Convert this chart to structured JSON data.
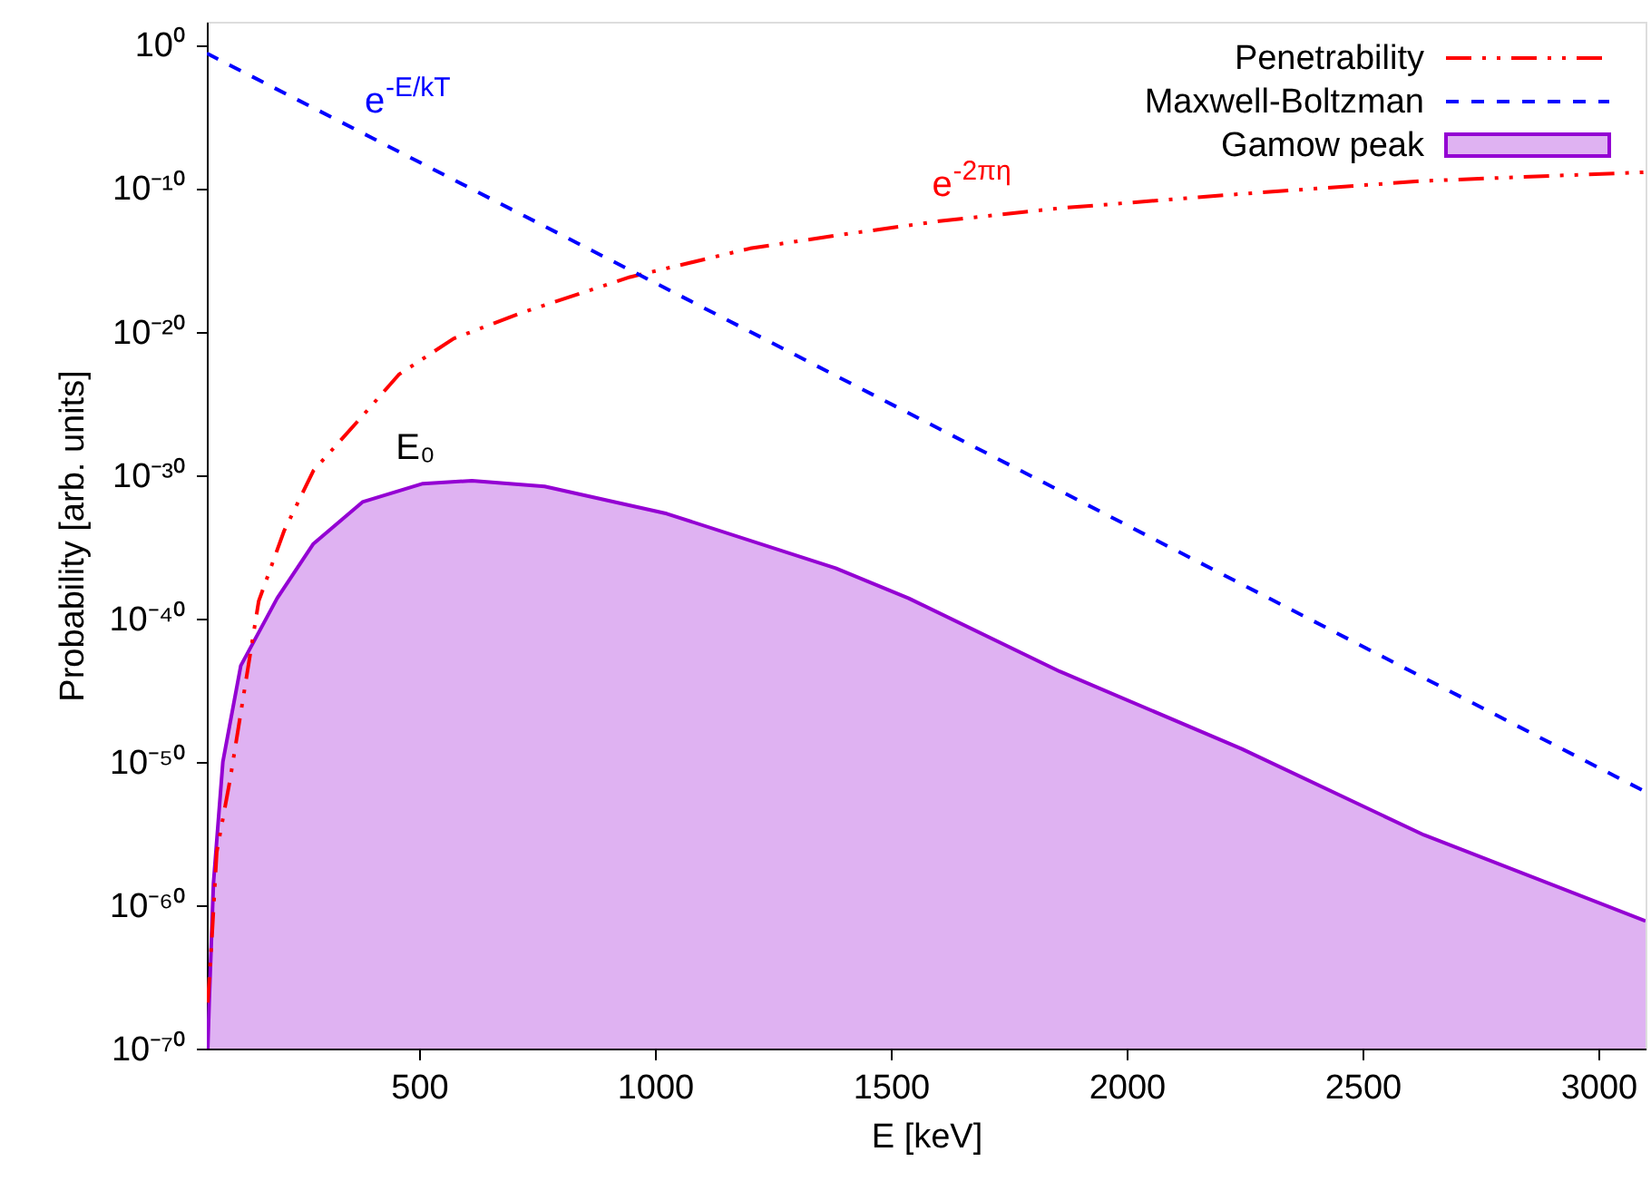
{
  "chart_data": {
    "type": "line",
    "xlabel": "E [keV]",
    "ylabel": "Probability [arb. units]",
    "xlim": [
      50,
      3100
    ],
    "xticks": [
      500,
      1000,
      1500,
      2000,
      2500,
      3000
    ],
    "ylim": [
      1e-70,
      40
    ],
    "log": "y",
    "yticks": [
      {
        "value": 1e-70,
        "label": "10⁻⁷⁰"
      },
      {
        "value": 1e-60,
        "label": "10⁻⁶⁰"
      },
      {
        "value": 1e-50,
        "label": "10⁻⁵⁰"
      },
      {
        "value": 1e-40,
        "label": "10⁻⁴⁰"
      },
      {
        "value": 1e-30,
        "label": "10⁻³⁰"
      },
      {
        "value": 1e-20,
        "label": "10⁻²⁰"
      },
      {
        "value": 1e-10,
        "label": "10⁻¹⁰"
      },
      {
        "value": 1,
        "label": "10⁰"
      }
    ],
    "grid": false,
    "legend": "top right",
    "series": [
      {
        "name": "Penetrability",
        "color": "#ff0000",
        "line_style": "dashdot",
        "x": [
          52,
          60,
          71,
          99,
          160,
          214,
          276,
          380,
          457,
          573,
          716,
          947,
          1202,
          1383,
          1603,
          1858,
          2244,
          2630,
          3100
        ],
        "values": [
          1.6e-67,
          2e-63,
          5e-57,
          5e-52,
          1.6e-39,
          1.3e-34,
          2e-30,
          1.3e-26,
          1e-23,
          3.2e-21,
          2e-19,
          6.3e-17,
          6.3e-15,
          5e-14,
          5e-13,
          4e-12,
          4e-11,
          3.2e-10,
          1.3e-09
        ]
      },
      {
        "name": "Maxwell-Boltzman",
        "color": "#0000ff",
        "line_style": "dashed",
        "x": [
          50,
          400,
          1000,
          2000,
          3100
        ],
        "values": [
          0.25,
          3.2e-07,
          2.5e-17,
          3.2e-34,
          8e-53
        ]
      },
      {
        "name": "Gamow peak",
        "type": "area",
        "color": "#9400d3",
        "x": [
          52,
          55,
          64,
          84,
          122,
          199,
          276,
          380,
          508,
          612,
          766,
          1025,
          1383,
          1538,
          1858,
          2244,
          2630,
          3100
        ],
        "values": [
          1e-70,
          1.6e-67,
          3.2e-59,
          1e-50,
          5e-44,
          2.5e-39,
          1.6e-35,
          1.3e-32,
          2.5e-31,
          4e-31,
          1.6e-31,
          2e-33,
          3.2e-37,
          2.5e-39,
          2e-44,
          7.9e-50,
          7.9e-56,
          7.9e-62
        ]
      }
    ],
    "annotations": [
      {
        "text": "e$^{-E/kT}$",
        "x": 400,
        "y": 3.2e-07
      },
      {
        "text": "e$^{-2πη}$",
        "x": 1603,
        "y": 5e-13
      },
      {
        "text": "E₀",
        "x": 612,
        "y": 4e-31
      }
    ]
  }
}
